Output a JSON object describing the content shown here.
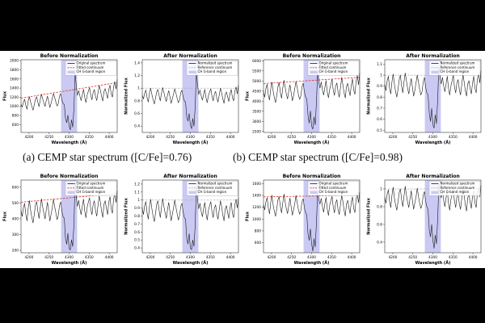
{
  "captions": [
    {
      "text": "(a) CEMP star spectrum ([C/Fe]=0.76)"
    },
    {
      "text": "(b) CEMP star spectrum ([C/Fe]=0.98)"
    }
  ],
  "chart_data": {
    "type": "line",
    "shared": {
      "xlabel": "Wavelength (Å)",
      "xlim": [
        4180,
        4420
      ],
      "xticks": [
        4200,
        4250,
        4300,
        4350,
        4400
      ],
      "n_points": 81,
      "band": {
        "label": "CH G-band region",
        "x0": 4280,
        "x1": 4320,
        "color": "#c9c9f3"
      },
      "colors": {
        "spectrum": "#1a1a1a",
        "fitted_continuum": "#e0302a",
        "reference_continuum": "#b3b3b3",
        "axes": "#333333"
      },
      "legend_before": [
        {
          "label": "Original spectrum",
          "swatch": "solid",
          "color": "#1a1a1a"
        },
        {
          "label": "Fitted continuum",
          "swatch": "dashed",
          "color": "#e0302a"
        },
        {
          "label": "CH G-band region",
          "swatch": "patch",
          "color": "#c9c9f3"
        }
      ],
      "legend_after": [
        {
          "label": "Normalized spectrum",
          "swatch": "solid",
          "color": "#1a1a1a"
        },
        {
          "label": "Reference continuum",
          "swatch": "dashed",
          "color": "#b3b3b3"
        },
        {
          "label": "CH G-band region",
          "swatch": "patch",
          "color": "#c9c9f3"
        }
      ]
    },
    "panels": [
      {
        "id": "a",
        "fitted_continuum": [
          1180,
          1520
        ],
        "normalized_flux": [
          0.89,
          0.83,
          0.92,
          0.97,
          0.85,
          0.78,
          0.93,
          1.0,
          0.9,
          0.82,
          0.75,
          0.84,
          0.94,
          0.98,
          0.88,
          0.8,
          0.92,
          1.01,
          0.93,
          0.85,
          0.79,
          0.89,
          0.96,
          0.87,
          0.76,
          0.83,
          0.91,
          0.99,
          0.92,
          0.84,
          0.77,
          0.81,
          0.93,
          0.97,
          0.86,
          0.8,
          0.78,
          0.55,
          0.48,
          0.6,
          0.42,
          0.36,
          0.52,
          0.4,
          0.7,
          1.26,
          1.05,
          0.9,
          0.97,
          0.88,
          0.81,
          0.9,
          0.98,
          0.85,
          0.77,
          0.88,
          0.94,
          0.99,
          0.87,
          0.8,
          0.91,
          0.95,
          0.84,
          0.78,
          0.89,
          1.0,
          0.93,
          0.83,
          0.76,
          0.9,
          0.94,
          0.86,
          0.79,
          0.92,
          0.98,
          0.85,
          0.8,
          0.95,
          1.02,
          0.91,
          1.05
        ],
        "before": {
          "title": "Before Normalization",
          "ylabel": "Flux",
          "ylim": [
            430,
            2020
          ],
          "yticks": [
            600,
            800,
            1000,
            1200,
            1400,
            1600,
            1800,
            2000
          ]
        },
        "after": {
          "title": "After Normalization",
          "ylabel": "Normalized Flux",
          "ylim": [
            0.3,
            1.45
          ],
          "yticks": [
            0.4,
            0.6,
            0.8,
            1.0,
            1.2,
            1.4
          ],
          "reference_line": 1.0
        }
      },
      {
        "id": "b",
        "fitted_continuum": [
          4870,
          5180
        ],
        "normalized_flux": [
          0.92,
          0.86,
          0.95,
          0.99,
          0.88,
          0.83,
          0.94,
          1.01,
          0.92,
          0.85,
          0.8,
          0.87,
          0.96,
          1.0,
          0.9,
          0.84,
          0.94,
          1.02,
          0.95,
          0.88,
          0.83,
          0.91,
          0.97,
          0.89,
          0.81,
          0.86,
          0.93,
          1.0,
          0.94,
          0.87,
          0.82,
          0.85,
          0.94,
          0.98,
          0.89,
          0.84,
          0.82,
          0.66,
          0.58,
          0.7,
          0.55,
          0.52,
          0.64,
          0.56,
          0.78,
          1.08,
          0.98,
          0.92,
          0.98,
          0.9,
          0.85,
          0.92,
          0.99,
          0.88,
          0.82,
          0.9,
          0.95,
          1.0,
          0.89,
          0.84,
          0.93,
          0.96,
          0.87,
          0.82,
          0.91,
          1.01,
          0.94,
          0.86,
          0.81,
          0.92,
          0.95,
          0.88,
          0.83,
          0.93,
          0.99,
          0.88,
          0.84,
          0.96,
          1.02,
          0.93,
          1.04
        ],
        "before": {
          "title": "Before Normalization",
          "ylabel": "Flux",
          "ylim": [
            2450,
            6050
          ],
          "yticks": [
            2500,
            3000,
            3500,
            4000,
            4500,
            5000,
            5500,
            6000
          ]
        },
        "after": {
          "title": "After Normalization",
          "ylabel": "Normalized Flux",
          "ylim": [
            0.48,
            1.14
          ],
          "yticks": [
            0.5,
            0.6,
            0.7,
            0.8,
            0.9,
            1.0,
            1.1
          ],
          "reference_line": 1.0
        }
      },
      {
        "id": "c",
        "fitted_continuum": [
          505,
          560
        ],
        "normalized_flux": [
          0.9,
          0.82,
          0.93,
          0.98,
          0.84,
          0.76,
          0.92,
          1.01,
          0.89,
          0.8,
          0.73,
          0.83,
          0.95,
          0.99,
          0.87,
          0.78,
          0.91,
          1.02,
          0.92,
          0.84,
          0.77,
          0.88,
          0.97,
          0.86,
          0.74,
          0.82,
          0.9,
          1.0,
          0.91,
          0.83,
          0.75,
          0.8,
          0.92,
          0.96,
          0.85,
          0.78,
          0.76,
          0.52,
          0.45,
          0.58,
          0.4,
          0.38,
          0.5,
          0.42,
          0.68,
          1.18,
          1.0,
          0.89,
          0.96,
          0.86,
          0.79,
          0.89,
          0.97,
          0.83,
          0.75,
          0.87,
          0.93,
          0.98,
          0.85,
          0.78,
          0.9,
          0.94,
          0.82,
          0.76,
          0.88,
          0.99,
          0.92,
          0.81,
          0.74,
          0.89,
          0.93,
          0.84,
          0.77,
          0.91,
          0.97,
          0.83,
          0.78,
          0.94,
          1.01,
          0.9,
          1.03
        ],
        "before": {
          "title": "Before Normalization",
          "ylabel": "Flux",
          "ylim": [
            185,
            645
          ],
          "yticks": [
            200,
            300,
            400,
            500,
            600
          ]
        },
        "after": {
          "title": "After Normalization",
          "ylabel": "Normalized Flux",
          "ylim": [
            0.34,
            1.25
          ],
          "yticks": [
            0.4,
            0.5,
            0.6,
            0.7,
            0.8,
            0.9,
            1.0,
            1.1,
            1.2
          ],
          "reference_line": 1.0
        }
      },
      {
        "id": "d",
        "fitted_continuum": [
          1375,
          1405
        ],
        "normalized_flux": [
          0.91,
          0.84,
          0.94,
          0.99,
          0.86,
          0.79,
          0.93,
          1.02,
          0.9,
          0.82,
          0.76,
          0.85,
          0.96,
          1.0,
          0.88,
          0.8,
          0.92,
          1.03,
          0.93,
          0.85,
          0.79,
          0.89,
          0.98,
          0.87,
          0.77,
          0.84,
          0.91,
          1.01,
          0.92,
          0.84,
          0.78,
          0.82,
          0.93,
          0.97,
          0.86,
          0.8,
          0.77,
          0.54,
          0.46,
          0.6,
          0.42,
          0.33,
          0.48,
          0.38,
          0.66,
          1.05,
          0.95,
          0.9,
          0.97,
          0.87,
          0.8,
          0.9,
          0.98,
          0.84,
          0.76,
          0.88,
          0.94,
          0.99,
          0.86,
          0.79,
          0.91,
          0.95,
          0.83,
          0.77,
          0.89,
          1.0,
          0.93,
          0.82,
          0.75,
          0.9,
          0.94,
          0.85,
          0.78,
          0.92,
          0.98,
          0.84,
          0.79,
          0.95,
          1.02,
          0.91,
          1.04
        ],
        "before": {
          "title": "Before Normalization",
          "ylabel": "Flux",
          "ylim": [
            430,
            1660
          ],
          "yticks": [
            600,
            800,
            1000,
            1200,
            1400,
            1600
          ]
        },
        "after": {
          "title": "After Normalization",
          "ylabel": "Normalized Flux",
          "ylim": [
            0.28,
            1.1
          ],
          "yticks": [
            0.4,
            0.6,
            0.8,
            1.0
          ],
          "reference_line": 1.0
        }
      }
    ]
  }
}
